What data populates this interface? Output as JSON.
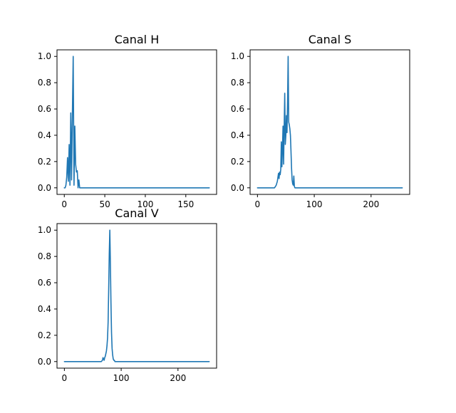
{
  "chart_data": [
    {
      "type": "line",
      "title": "Canal H",
      "xlabel": "",
      "ylabel": "",
      "xlim": [
        -9,
        188
      ],
      "ylim": [
        -0.05,
        1.05
      ],
      "xticks": [
        0,
        50,
        100,
        150
      ],
      "yticks": [
        0.0,
        0.2,
        0.4,
        0.6,
        0.8,
        1.0
      ],
      "grid": false,
      "series": [
        {
          "color": "#1f77b4",
          "x": [
            0,
            1,
            2,
            3,
            4,
            5,
            6,
            7,
            8,
            9,
            10,
            11,
            12,
            13,
            14,
            15,
            16,
            17,
            18,
            19,
            20,
            21,
            22,
            23,
            24,
            25,
            26,
            27,
            28,
            30,
            40,
            60,
            80,
            100,
            120,
            140,
            160,
            179
          ],
          "y": [
            0,
            0,
            0.02,
            0.08,
            0.23,
            0.05,
            0.33,
            0.02,
            0.57,
            0.06,
            0.57,
            1.0,
            0.02,
            0.47,
            0.18,
            0.12,
            0.13,
            0.0,
            0.06,
            0.0,
            0,
            0,
            0,
            0,
            0,
            0,
            0,
            0,
            0,
            0,
            0,
            0,
            0,
            0,
            0,
            0,
            0,
            0
          ]
        }
      ]
    },
    {
      "type": "line",
      "title": "Canal S",
      "xlabel": "",
      "ylabel": "",
      "xlim": [
        -13,
        268
      ],
      "ylim": [
        -0.05,
        1.05
      ],
      "xticks": [
        0,
        100,
        200
      ],
      "yticks": [
        0.0,
        0.2,
        0.4,
        0.6,
        0.8,
        1.0
      ],
      "grid": false,
      "series": [
        {
          "color": "#1f77b4",
          "x": [
            0,
            10,
            20,
            30,
            33,
            35,
            36,
            37,
            38,
            39,
            40,
            41,
            42,
            43,
            44,
            45,
            46,
            47,
            48,
            49,
            50,
            51,
            52,
            53,
            54,
            55,
            56,
            57,
            58,
            59,
            60,
            61,
            62,
            63,
            64,
            65,
            66,
            67,
            68,
            70,
            80,
            100,
            150,
            200,
            255
          ],
          "y": [
            0,
            0,
            0,
            0,
            0.02,
            0.05,
            0.08,
            0.11,
            0.07,
            0.12,
            0.1,
            0.14,
            0.35,
            0.16,
            0.3,
            0.47,
            0.18,
            0.46,
            0.72,
            0.33,
            0.4,
            0.55,
            0.42,
            0.65,
            1.0,
            0.5,
            0.48,
            0.45,
            0.4,
            0.28,
            0.15,
            0.06,
            0.03,
            0.02,
            0.09,
            0.01,
            0,
            0,
            0,
            0,
            0,
            0,
            0,
            0,
            0
          ]
        }
      ]
    },
    {
      "type": "line",
      "title": "Canal V",
      "xlabel": "",
      "ylabel": "",
      "xlim": [
        -13,
        268
      ],
      "ylim": [
        -0.05,
        1.05
      ],
      "xticks": [
        0,
        100,
        200
      ],
      "yticks": [
        0.0,
        0.2,
        0.4,
        0.6,
        0.8,
        1.0
      ],
      "grid": false,
      "series": [
        {
          "color": "#1f77b4",
          "x": [
            0,
            20,
            40,
            60,
            65,
            67,
            68,
            69,
            70,
            71,
            72,
            73,
            74,
            75,
            76,
            77,
            78,
            79,
            80,
            81,
            82,
            83,
            84,
            85,
            86,
            87,
            88,
            89,
            90,
            92,
            95,
            100,
            150,
            200,
            255
          ],
          "y": [
            0,
            0,
            0,
            0,
            0,
            0.01,
            0.03,
            0.02,
            0.01,
            0.03,
            0.04,
            0.06,
            0.08,
            0.12,
            0.18,
            0.3,
            0.55,
            0.82,
            1.0,
            0.75,
            0.45,
            0.22,
            0.1,
            0.05,
            0.02,
            0.01,
            0.01,
            0,
            0,
            0,
            0,
            0,
            0,
            0,
            0
          ]
        }
      ]
    }
  ]
}
